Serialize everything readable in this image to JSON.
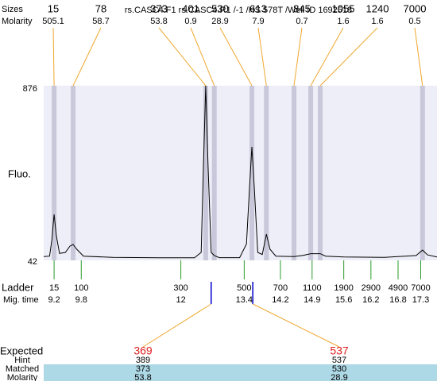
{
  "chart_data": {
    "type": "electropherogram",
    "title": "rs.CASC4.F1  rs.CASC4.R1 /-1 /HS 578T /Well ID 1692518",
    "y_label": "Fluo.",
    "ylim": [
      42,
      876
    ],
    "yticks": [
      42,
      876
    ],
    "xlim": [
      8.97,
      17.66
    ],
    "peaks": {
      "size_label": "Sizes",
      "molarity_label": "Molarity",
      "sizes": [
        15,
        78,
        373,
        401,
        530,
        613,
        845,
        1055,
        1240,
        7000
      ],
      "molarity": [
        505.1,
        58.7,
        53.8,
        0.9,
        28.9,
        7.9,
        0.7,
        1.6,
        1.6,
        0.5
      ],
      "times": [
        9.2,
        9.62,
        12.55,
        12.74,
        13.57,
        13.89,
        14.5,
        14.87,
        15.08,
        17.34
      ]
    },
    "ladder": {
      "label": "Ladder",
      "time_label": "Mig. time",
      "sizes": [
        15,
        100,
        300,
        500,
        700,
        1100,
        1900,
        2900,
        4900,
        7000
      ],
      "times": [
        9.2,
        9.8,
        12,
        13.4,
        14.2,
        14.9,
        15.6,
        16.2,
        16.8,
        17.3
      ]
    },
    "trace": {
      "x": [
        8.97,
        9.1,
        9.15,
        9.2,
        9.25,
        9.32,
        9.45,
        9.55,
        9.62,
        9.7,
        9.85,
        10.5,
        11.5,
        12.3,
        12.45,
        12.5,
        12.55,
        12.6,
        12.67,
        12.74,
        12.85,
        13.3,
        13.45,
        13.52,
        13.57,
        13.62,
        13.7,
        13.8,
        13.89,
        13.97,
        14.1,
        14.5,
        14.7,
        14.87,
        15.08,
        15.2,
        15.6,
        16.5,
        17.2,
        17.34,
        17.45,
        17.66
      ],
      "y": [
        60,
        62,
        140,
        262,
        160,
        75,
        80,
        110,
        118,
        95,
        62,
        56,
        54,
        54,
        80,
        500,
        876,
        500,
        80,
        65,
        55,
        55,
        120,
        400,
        584,
        400,
        80,
        70,
        167,
        95,
        62,
        60,
        66,
        74,
        74,
        62,
        58,
        56,
        65,
        91,
        68,
        58
      ]
    },
    "markers": {
      "times": [
        12.67,
        13.59
      ]
    },
    "table": {
      "rows": [
        {
          "label": "Expected",
          "values": [
            369,
            537
          ]
        },
        {
          "label": "Hint",
          "values": [
            389,
            537
          ]
        },
        {
          "label": "Matched",
          "values": [
            373,
            530
          ]
        },
        {
          "label": "Molarity",
          "values": [
            53.8,
            28.9
          ]
        }
      ]
    }
  }
}
